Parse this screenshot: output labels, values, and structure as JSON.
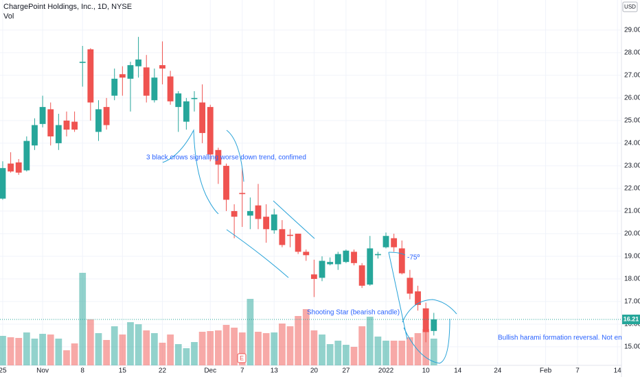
{
  "chart_data": {
    "type": "candlestick",
    "title": "ChargePoint Holdings, Inc., 1D, NYSE",
    "volume_label": "Vol",
    "currency": "USD",
    "annotations": [
      "3 black crows signalling worse down trend, confimed",
      "-75º",
      "Shooting Star (bearish candle)",
      "Bullish harami formation reversal. Not enough selle"
    ],
    "earnings_marker": "E",
    "up_color": "#26a69a",
    "down_color": "#ef5350",
    "open": [
      21.55,
      23.1,
      23.15,
      22.8,
      23.9,
      24.85,
      25.5,
      24.0,
      25.0,
      24.95,
      27.55,
      28.15,
      24.5,
      25.6,
      26.1,
      27.05,
      26.85,
      27.4,
      27.35,
      25.9,
      27.45,
      26.95,
      25.6,
      24.95,
      25.95,
      25.8,
      25.6,
      23.7,
      23.0,
      21.0,
      21.8,
      20.8,
      21.25,
      20.75,
      20.15,
      20.2,
      19.95,
      20.0,
      19.2,
      18.2,
      18.05,
      18.65,
      18.65,
      18.75,
      19.2,
      18.6,
      17.75,
      19.05,
      19.4,
      19.8,
      19.35,
      18.05,
      17.45,
      16.7,
      15.7
    ],
    "high": [
      23.2,
      23.6,
      23.3,
      24.3,
      25.1,
      26.1,
      25.8,
      25.3,
      25.4,
      25.4,
      28.3,
      28.2,
      25.9,
      26.0,
      27.3,
      27.4,
      27.6,
      28.7,
      27.9,
      27.3,
      28.5,
      27.2,
      26.3,
      26.0,
      26.3,
      26.6,
      25.7,
      23.8,
      23.1,
      21.3,
      22.9,
      21.6,
      22.2,
      21.3,
      21.1,
      20.6,
      20.2,
      20.0,
      19.3,
      18.85,
      19.0,
      18.95,
      19.2,
      19.3,
      19.3,
      18.7,
      19.9,
      19.2,
      20.05,
      20.0,
      19.7,
      18.4,
      17.7,
      16.95,
      16.5
    ],
    "low": [
      21.5,
      22.7,
      22.6,
      22.75,
      23.7,
      24.7,
      23.9,
      23.7,
      24.3,
      24.5,
      26.5,
      25.0,
      24.1,
      24.6,
      25.9,
      26.1,
      25.4,
      26.9,
      25.8,
      25.8,
      26.6,
      25.7,
      24.5,
      24.6,
      25.4,
      24.0,
      23.2,
      22.2,
      21.0,
      19.8,
      20.3,
      20.2,
      20.2,
      19.6,
      20.0,
      19.4,
      19.4,
      19.1,
      18.8,
      17.2,
      17.9,
      18.6,
      18.4,
      18.7,
      18.6,
      17.6,
      17.7,
      18.9,
      19.35,
      19.2,
      18.2,
      17.1,
      16.6,
      15.2,
      15.5
    ],
    "close": [
      22.9,
      22.75,
      22.7,
      24.1,
      24.8,
      25.6,
      24.3,
      24.8,
      24.6,
      24.6,
      27.6,
      25.8,
      25.5,
      24.8,
      26.85,
      26.9,
      27.45,
      27.7,
      26.1,
      26.9,
      27.3,
      25.85,
      26.2,
      25.85,
      26.0,
      24.45,
      23.5,
      23.05,
      21.5,
      20.75,
      21.75,
      21.0,
      20.65,
      20.2,
      20.85,
      19.5,
      19.9,
      19.2,
      19.05,
      18.0,
      18.8,
      18.75,
      19.1,
      19.25,
      18.7,
      17.7,
      19.35,
      19.1,
      19.9,
      19.4,
      18.25,
      17.35,
      16.85,
      15.65,
      16.21
    ],
    "volume": [
      43,
      41,
      40,
      48,
      39,
      46,
      45,
      39,
      22,
      32,
      135,
      67,
      47,
      37,
      57,
      45,
      63,
      60,
      51,
      47,
      33,
      45,
      31,
      25,
      34,
      49,
      50,
      51,
      59,
      55,
      48,
      97,
      49,
      47,
      48,
      61,
      57,
      72,
      82,
      51,
      45,
      31,
      36,
      30,
      27,
      57,
      71,
      42,
      36,
      36,
      36,
      41,
      47,
      53,
      39
    ],
    "vlim": [
      0,
      533
    ],
    "xlim": [
      -0.34,
      77.5
    ],
    "xticks": [
      {
        "value": 0,
        "label": "25"
      },
      {
        "value": 5,
        "label": "Nov"
      },
      {
        "value": 10,
        "label": "8"
      },
      {
        "value": 15,
        "label": "15"
      },
      {
        "value": 20,
        "label": "22"
      },
      {
        "value": 26,
        "label": "Dec"
      },
      {
        "value": 30,
        "label": "7"
      },
      {
        "value": 34,
        "label": "13"
      },
      {
        "value": 39,
        "label": "20"
      },
      {
        "value": 43,
        "label": "27"
      },
      {
        "value": 48,
        "label": "2022"
      },
      {
        "value": 53,
        "label": "10"
      },
      {
        "value": 57,
        "label": "14"
      },
      {
        "value": 62,
        "label": "24"
      },
      {
        "value": 68,
        "label": "Feb"
      },
      {
        "value": 72,
        "label": "7"
      },
      {
        "value": 77,
        "label": "14"
      }
    ],
    "ylim": [
      14.18,
      30.33
    ],
    "yticks": [
      {
        "value": 15,
        "label": "15.00"
      },
      {
        "value": 16,
        "label": "16.00"
      },
      {
        "value": 17,
        "label": "17.00"
      },
      {
        "value": 18,
        "label": "18.00"
      },
      {
        "value": 19,
        "label": "19.00"
      },
      {
        "value": 20,
        "label": "20.00"
      },
      {
        "value": 21,
        "label": "21.00"
      },
      {
        "value": 22,
        "label": "22.00"
      },
      {
        "value": 23,
        "label": "23.00"
      },
      {
        "value": 24,
        "label": "24.00"
      },
      {
        "value": 25,
        "label": "25.00"
      },
      {
        "value": 26,
        "label": "26.00"
      },
      {
        "value": 27,
        "label": "27.00"
      },
      {
        "value": 28,
        "label": "28.00"
      },
      {
        "value": 29,
        "label": "29.00"
      }
    ]
  }
}
